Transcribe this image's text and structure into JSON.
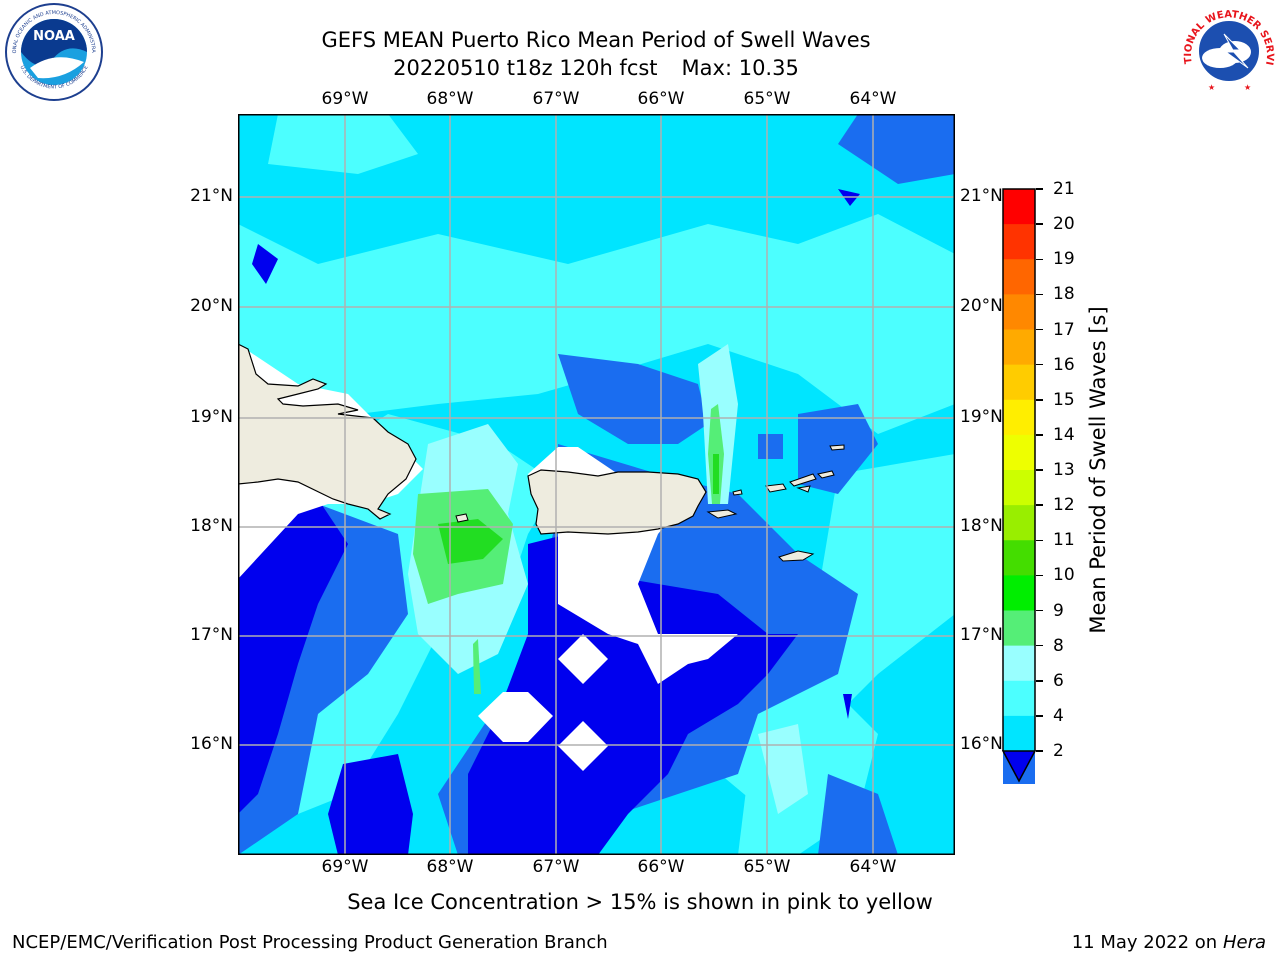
{
  "title": {
    "line1": "GEFS MEAN Puerto Rico Mean Period of Swell Waves",
    "line2_date": "20220510 t18z 120h fcst",
    "line2_max": "Max: 10.35"
  },
  "logos": {
    "left": {
      "text": "NOAA",
      "ring_text_top": "NATIONAL OCEANIC AND ATMOSPHERIC ADMINISTRATION",
      "ring_text_bottom": "U.S. DEPARTMENT OF COMMERCE",
      "icon": "noaa-logo"
    },
    "right": {
      "ring_text": "NATIONAL WEATHER SERVICE",
      "icon": "nws-logo"
    }
  },
  "map": {
    "lon_labels": [
      "69°W",
      "68°W",
      "67°W",
      "66°W",
      "65°W",
      "64°W"
    ],
    "lat_labels": [
      "21°N",
      "20°N",
      "19°N",
      "18°N",
      "17°N",
      "16°N"
    ],
    "colors": {
      "land": "#eeecdf",
      "lt2": "#0000ee",
      "c2_4": "#1a6df0",
      "c4_6": "#00e5ff",
      "c6_8": "#4cffff",
      "c8_9": "#99ffff",
      "c9_10": "#55ee77",
      "c10_11": "#22dd22"
    }
  },
  "colorbar": {
    "label": "Mean Period of Swell Waves [s]",
    "ticks": [
      "21",
      "20",
      "19",
      "18",
      "17",
      "16",
      "15",
      "14",
      "13",
      "12",
      "11",
      "10",
      "9",
      "8",
      "6",
      "4",
      "2"
    ],
    "colors": [
      "#ff0000",
      "#ff3300",
      "#ff6600",
      "#ff8800",
      "#ffaa00",
      "#ffcc00",
      "#ffee00",
      "#eeff00",
      "#ccff00",
      "#99ee00",
      "#44dd00",
      "#00ee00",
      "#55ee77",
      "#99ffff",
      "#4cffff",
      "#00e5ff",
      "#1a6df0"
    ],
    "extend_color": "#0000ee"
  },
  "note": "Sea Ice Concentration > 15% is shown in pink to yellow",
  "footer": {
    "left": "NCEP/EMC/Verification Post Processing Product Generation Branch",
    "right_date": "11 May 2022 on",
    "right_machine": "Hera"
  }
}
